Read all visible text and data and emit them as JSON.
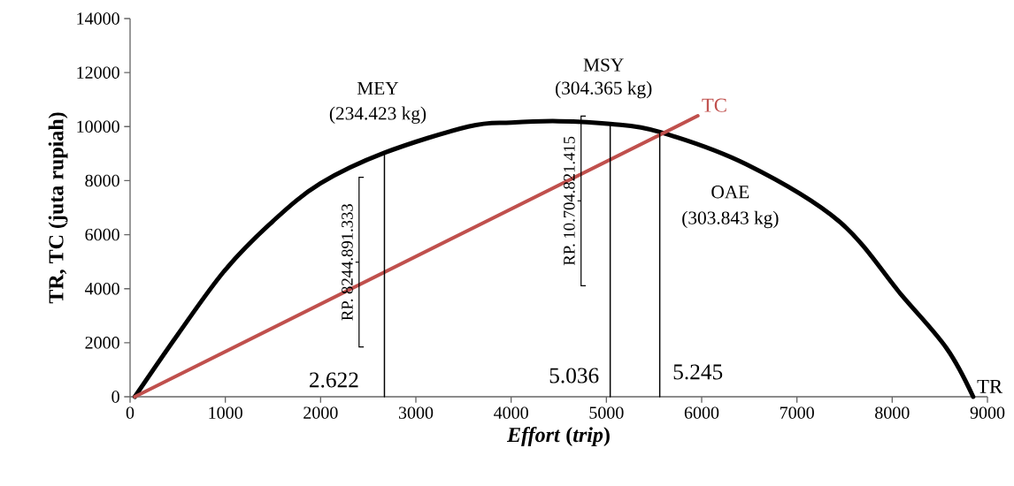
{
  "chart_data": {
    "type": "line",
    "xlabel": "*Effort* (*trip*)",
    "ylabel": "TR, TC (juta rupiah)",
    "xlim": [
      0,
      9000
    ],
    "ylim": [
      0,
      14000
    ],
    "xticks": [
      0,
      1000,
      2000,
      3000,
      4000,
      5000,
      6000,
      7000,
      8000,
      9000
    ],
    "yticks": [
      0,
      2000,
      4000,
      6000,
      8000,
      10000,
      12000,
      14000
    ],
    "legend": false,
    "marker": "none",
    "line_style": "solid",
    "series": [
      {
        "name": "TR",
        "color": "#000000",
        "x": [
          50,
          500,
          1000,
          1500,
          2000,
          2670,
          3550,
          4000,
          4500,
          5040,
          5560,
          6470,
          7440,
          8090,
          8570,
          8850
        ],
        "values": [
          0,
          2300,
          4700,
          6500,
          7900,
          9030,
          10000,
          10150,
          10200,
          10100,
          9800,
          8600,
          6500,
          3800,
          1800,
          0
        ]
      },
      {
        "name": "TC",
        "color": "#c0504d",
        "x": [
          50,
          5960
        ],
        "values": [
          0,
          10400
        ]
      },
      {
        "color": "#000000",
        "x": [
          2670,
          2670
        ],
        "values": [
          0,
          9030
        ]
      },
      {
        "color": "#000000",
        "x": [
          5040,
          5040
        ],
        "values": [
          0,
          10100
        ]
      },
      {
        "color": "#000000",
        "x": [
          5560,
          5560
        ],
        "values": [
          0,
          9800
        ]
      }
    ],
    "annotations": [
      "MEY",
      "(234.423 kg)",
      "MSY",
      "(304.365 kg)",
      "OAE",
      "(303.843 kg)",
      "RP. 8244.891.333",
      "RP. 10.704.821.415",
      "2.622",
      "5.036",
      "5.245"
    ]
  }
}
